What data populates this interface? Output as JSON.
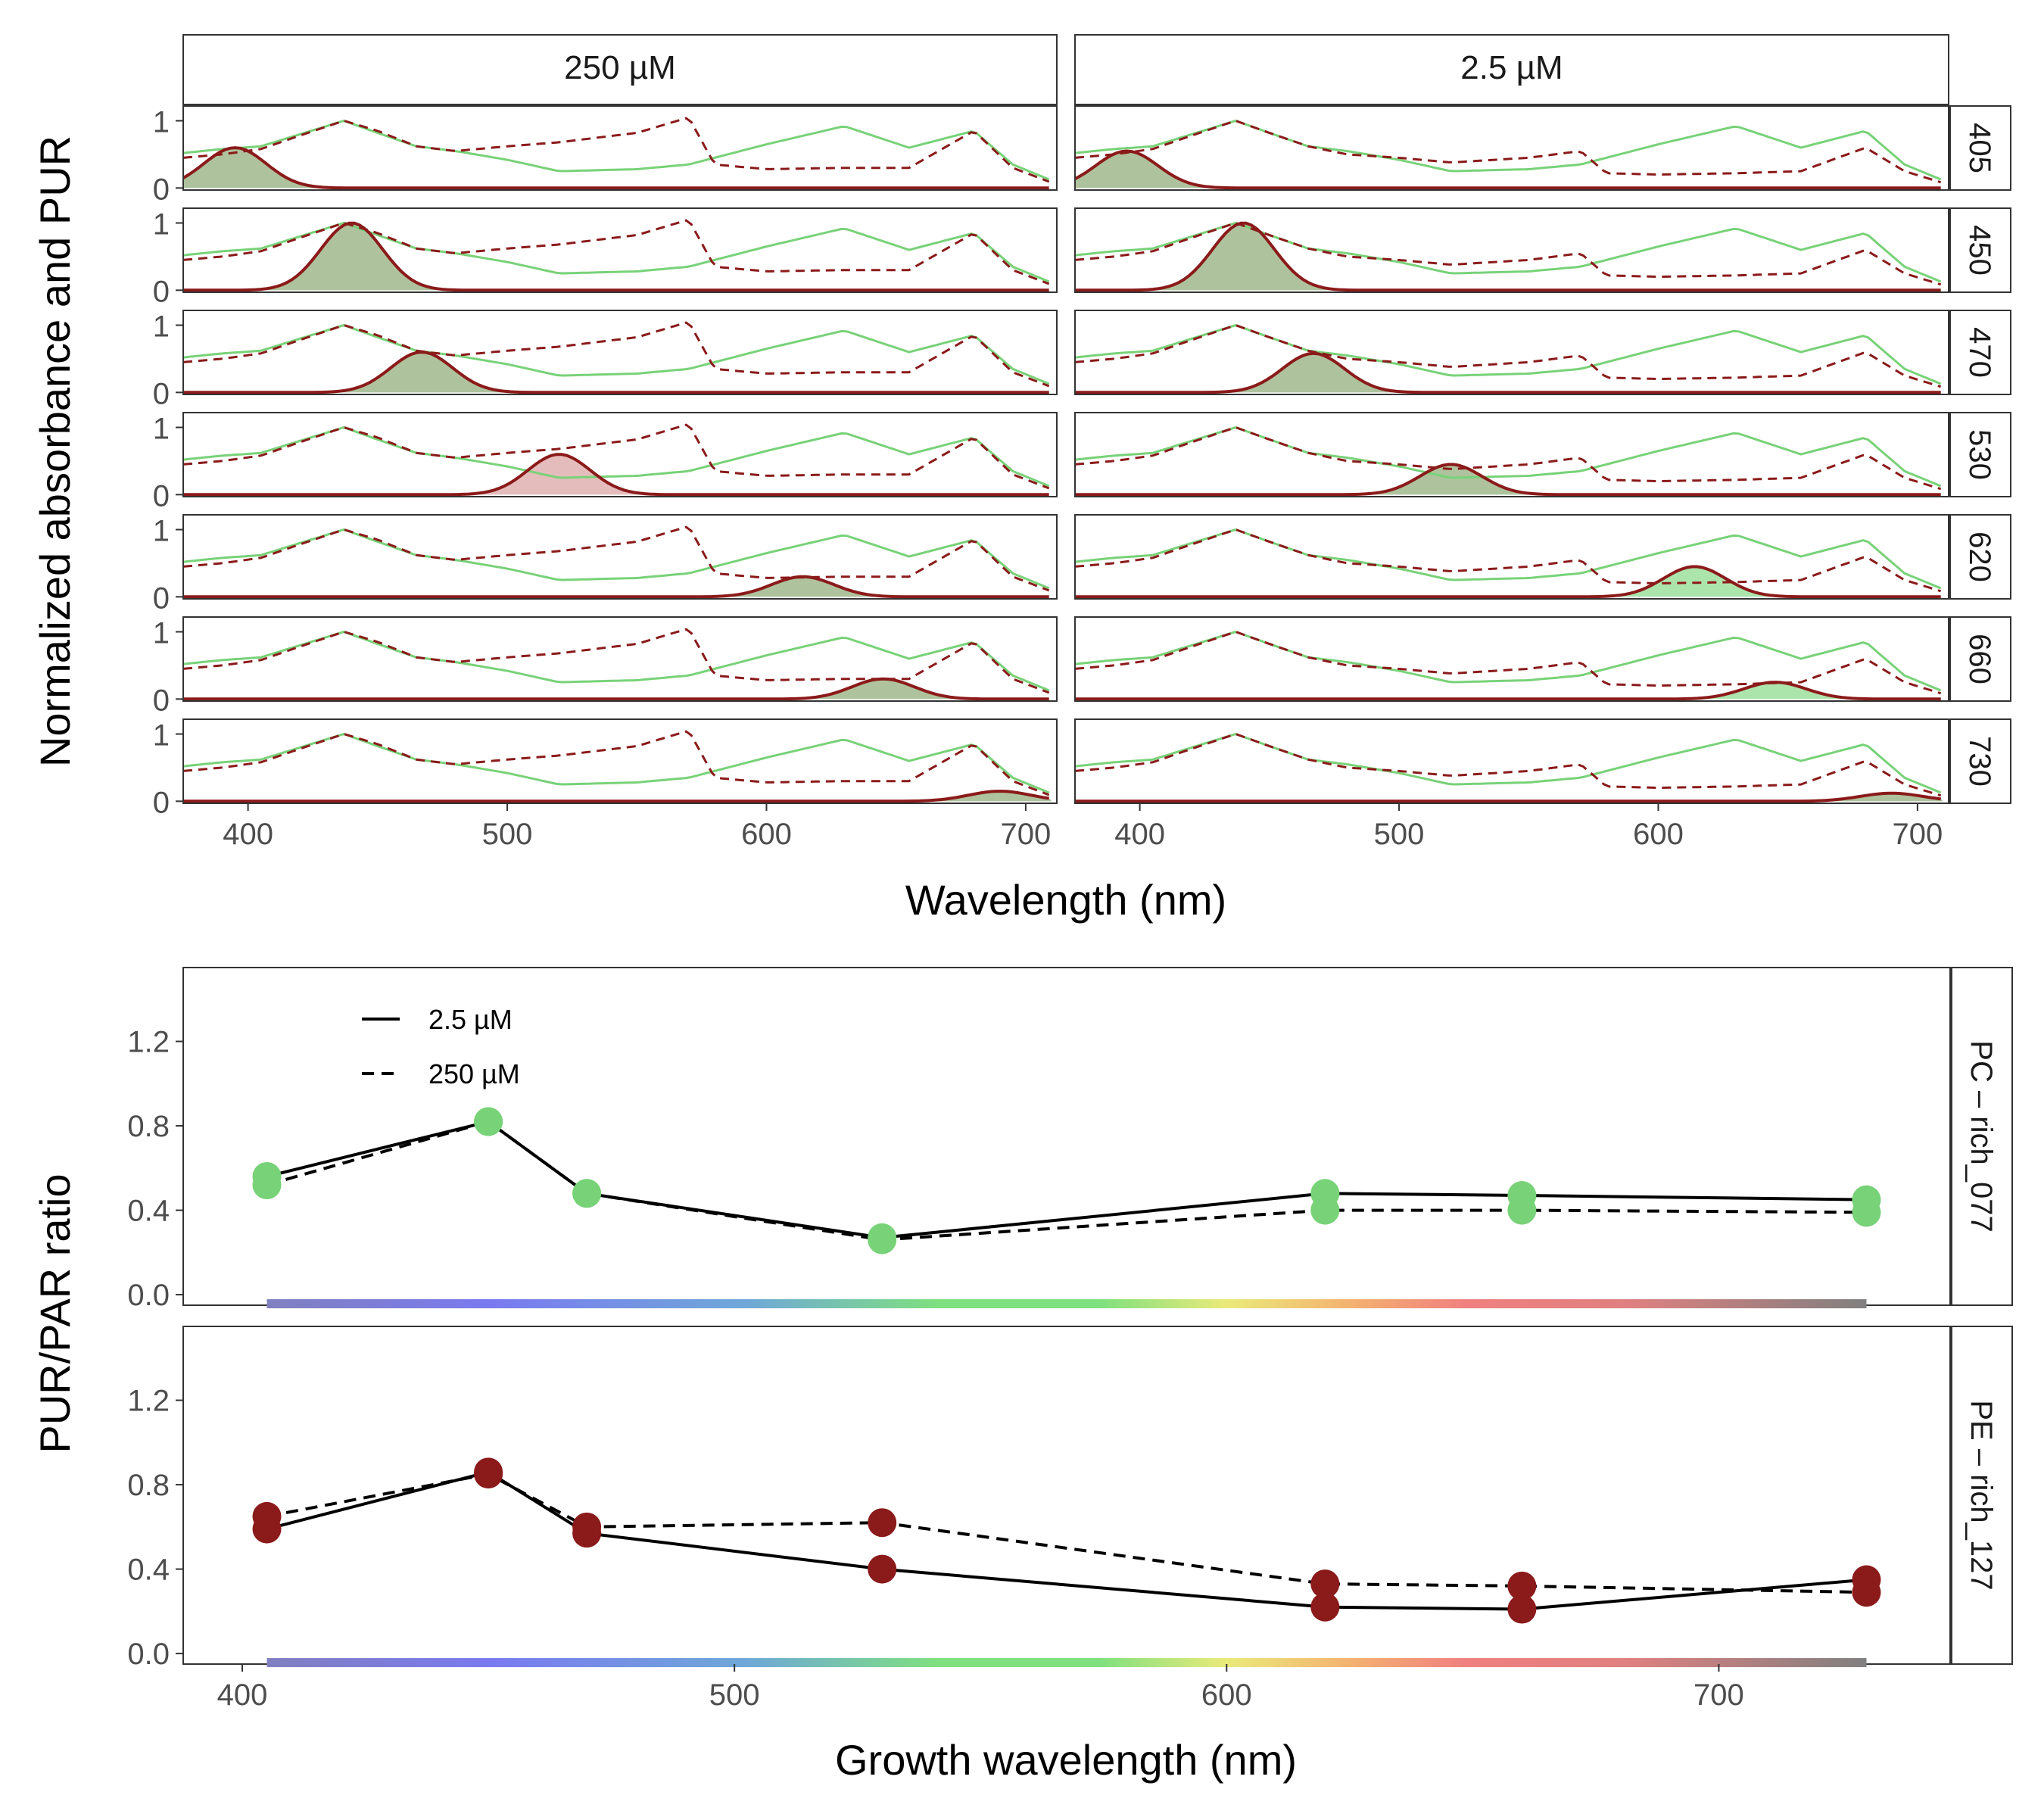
{
  "colors": {
    "absorbance_green": "#78d278",
    "pur_darkred": "#8b1a1a",
    "pur_fill_green": "#a0b98c",
    "pur_fill_red": "#e0b0b0",
    "point_green": "#78d278",
    "point_darkred": "#8b1a1a",
    "panel_border": "#333333",
    "strip_fill": "#ffffff"
  },
  "chart_data": [
    {
      "type": "area",
      "facet_columns": [
        "250 µM",
        "2.5 µM"
      ],
      "facet_rows": [
        "405",
        "450",
        "470",
        "530",
        "620",
        "660",
        "730"
      ],
      "xlabel": "Wavelength (nm)",
      "ylabel": "Normalized absorbance and PUR",
      "xlim": [
        375,
        712
      ],
      "xticks": [
        400,
        500,
        600,
        700
      ],
      "ylim": [
        0,
        1.2
      ],
      "yticks": [
        0,
        1
      ],
      "grid": false,
      "series_styles": {
        "absorbance_PC_rich_077": "solid green line",
        "absorbance_PE_rich_127": "dashed dark red line",
        "PUR": "solid dark red line with filled area"
      },
      "x": [
        375,
        390,
        405,
        420,
        437,
        450,
        465,
        480,
        500,
        520,
        550,
        570,
        580,
        600,
        630,
        655,
        680,
        695,
        712
      ],
      "absorbance_PC_rich_077": [
        0.52,
        0.58,
        0.62,
        0.8,
        1.0,
        0.82,
        0.62,
        0.55,
        0.42,
        0.25,
        0.28,
        0.35,
        0.45,
        0.65,
        0.92,
        0.6,
        0.85,
        0.35,
        0.08
      ],
      "absorbance_PE_rich_127_250uM": [
        0.45,
        0.5,
        0.58,
        0.78,
        1.0,
        0.85,
        0.62,
        0.55,
        0.62,
        0.68,
        0.82,
        1.05,
        0.35,
        0.28,
        0.3,
        0.3,
        0.85,
        0.3,
        0.05
      ],
      "absorbance_PE_rich_127_2_5uM": [
        0.45,
        0.5,
        0.58,
        0.78,
        1.0,
        0.82,
        0.62,
        0.5,
        0.45,
        0.38,
        0.45,
        0.55,
        0.22,
        0.2,
        0.22,
        0.25,
        0.6,
        0.25,
        0.05
      ],
      "PUR_peaks": [
        {
          "growth": 405,
          "peak_x": 395,
          "height_250uM": 0.6,
          "height_2_5uM": 0.55
        },
        {
          "growth": 450,
          "peak_x": 440,
          "height_250uM": 1.0,
          "height_2_5uM": 1.0
        },
        {
          "growth": 470,
          "peak_x": 467,
          "height_250uM": 0.6,
          "height_2_5uM": 0.58
        },
        {
          "growth": 530,
          "peak_x": 520,
          "height_250uM": 0.6,
          "height_2_5uM": 0.45
        },
        {
          "growth": 620,
          "peak_x": 614,
          "height_250uM": 0.3,
          "height_2_5uM": 0.45
        },
        {
          "growth": 660,
          "peak_x": 645,
          "height_250uM": 0.3,
          "height_2_5uM": 0.25
        },
        {
          "growth": 730,
          "peak_x": 690,
          "height_250uM": 0.15,
          "height_2_5uM": 0.12
        }
      ]
    },
    {
      "type": "line",
      "facet_rows": [
        "PC – rich_077",
        "PE – rich_127"
      ],
      "xlabel": "Growth wavelength (nm)",
      "ylabel": "PUR/PAR ratio",
      "xlim": [
        388,
        747
      ],
      "xticks": [
        400,
        500,
        600,
        700
      ],
      "ylim": [
        -0.05,
        1.55
      ],
      "yticks": [
        0.0,
        0.4,
        0.8,
        1.2
      ],
      "ytick_labels": [
        "0.0",
        "0.4",
        "0.8",
        "1.2"
      ],
      "legend": {
        "placement": "top-left",
        "entries": [
          {
            "label": "2.5 µM",
            "style": "solid"
          },
          {
            "label": "250 µM",
            "style": "dashed"
          }
        ]
      },
      "x": [
        405,
        450,
        470,
        530,
        620,
        660,
        730
      ],
      "panels": [
        {
          "name": "PC – rich_077",
          "point_color": "green",
          "series": [
            {
              "name": "2.5 µM",
              "values": [
                0.56,
                0.82,
                0.48,
                0.27,
                0.48,
                0.47,
                0.45
              ]
            },
            {
              "name": "250 µM",
              "values": [
                0.52,
                0.82,
                0.48,
                0.26,
                0.4,
                0.4,
                0.39
              ]
            }
          ]
        },
        {
          "name": "PE – rich_127",
          "point_color": "darkred",
          "series": [
            {
              "name": "2.5 µM",
              "values": [
                0.59,
                0.86,
                0.57,
                0.4,
                0.22,
                0.21,
                0.35
              ]
            },
            {
              "name": "250 µM",
              "values": [
                0.65,
                0.85,
                0.6,
                0.62,
                0.33,
                0.32,
                0.29
              ]
            }
          ]
        }
      ],
      "spectrum_bar": {
        "from": 405,
        "to": 730
      }
    }
  ]
}
